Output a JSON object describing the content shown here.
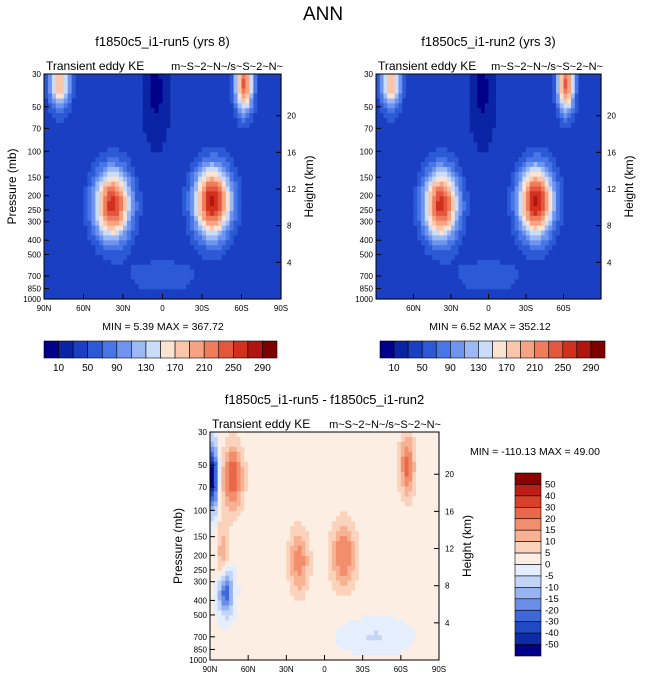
{
  "figure": {
    "title": "ANN"
  },
  "colors": {
    "top_palette": [
      "#00008b",
      "#0b24a6",
      "#1a3fc2",
      "#2c5ad6",
      "#4876e6",
      "#6f94ef",
      "#9cb8f5",
      "#c9dcfa",
      "#fbe3d2",
      "#f9c6ac",
      "#f5a382",
      "#ef7d5c",
      "#e4563d",
      "#d2301f",
      "#b01510",
      "#7d0000"
    ],
    "diff_palette": [
      "#00008b",
      "#0d2ba8",
      "#2149c4",
      "#3d68da",
      "#6b8ee8",
      "#97b3f1",
      "#c2d5f8",
      "#e4eefc",
      "#fdeee4",
      "#fbd3bc",
      "#f7b193",
      "#f28e6c",
      "#e96849",
      "#d8402a",
      "#bb1e14",
      "#8b0000"
    ]
  },
  "chart_data": [
    {
      "type": "heatmap",
      "title": "f1850c5_i1-run5 (yrs 8)",
      "left_label": "Transient eddy KE",
      "right_label": "m~S~2~N~/s~S~2~N~",
      "ylabel": "Pressure (mb)",
      "y2label": "Height (km)",
      "pressure_ticks": [
        "30",
        "50",
        "70",
        "100",
        "150",
        "200",
        "250",
        "300",
        "400",
        "500",
        "700",
        "850",
        "1000"
      ],
      "height_ticks": [
        "4",
        "8",
        "12",
        "16",
        "20"
      ],
      "lat_ticks": [
        "90N",
        "60N",
        "30N",
        "0",
        "30S",
        "60S",
        "90S"
      ],
      "stats_text": "MIN =  5.39  MAX = 367.72",
      "min": 5.39,
      "max": 367.72
    },
    {
      "type": "heatmap",
      "title": "f1850c5_i1-run2 (yrs 3)",
      "left_label": "Transient eddy KE",
      "right_label": "m~S~2~N~/s~S~2~N~",
      "ylabel": "",
      "y2label": "Height (km)",
      "pressure_ticks": [
        "30",
        "50",
        "70",
        "100",
        "150",
        "200",
        "250",
        "300",
        "400",
        "500",
        "700",
        "850",
        "1000"
      ],
      "height_ticks": [
        "4",
        "8",
        "12",
        "16",
        "20"
      ],
      "lat_ticks": [
        "60N",
        "30N",
        "0",
        "30S",
        "60S"
      ],
      "stats_text": "MIN =  6.52  MAX = 352.12",
      "min": 6.52,
      "max": 352.12
    },
    {
      "type": "heatmap",
      "title": "f1850c5_i1-run5 - f1850c5_i1-run2",
      "left_label": "Transient eddy KE",
      "right_label": "m~S~2~N~/s~S~2~N~",
      "ylabel": "Pressure (mb)",
      "y2label": "Height (km)",
      "pressure_ticks": [
        "30",
        "50",
        "70",
        "100",
        "150",
        "200",
        "250",
        "300",
        "400",
        "500",
        "700",
        "850",
        "1000"
      ],
      "height_ticks": [
        "4",
        "8",
        "12",
        "16",
        "20"
      ],
      "lat_ticks": [
        "90N",
        "60N",
        "30N",
        "0",
        "30S",
        "60S",
        "90S"
      ],
      "stats_text": "MIN = -110.13  MAX =  49.00",
      "min": -110.13,
      "max": 49.0
    },
    {
      "type": "colorbar",
      "orientation": "horizontal",
      "labels": [
        "10",
        "50",
        "90",
        "130",
        "170",
        "210",
        "250",
        "290"
      ]
    },
    {
      "type": "colorbar",
      "orientation": "vertical",
      "labels": [
        "50",
        "40",
        "30",
        "20",
        "15",
        "10",
        "5",
        "0",
        "-5",
        "-10",
        "-15",
        "-20",
        "-30",
        "-40",
        "-50"
      ]
    }
  ]
}
